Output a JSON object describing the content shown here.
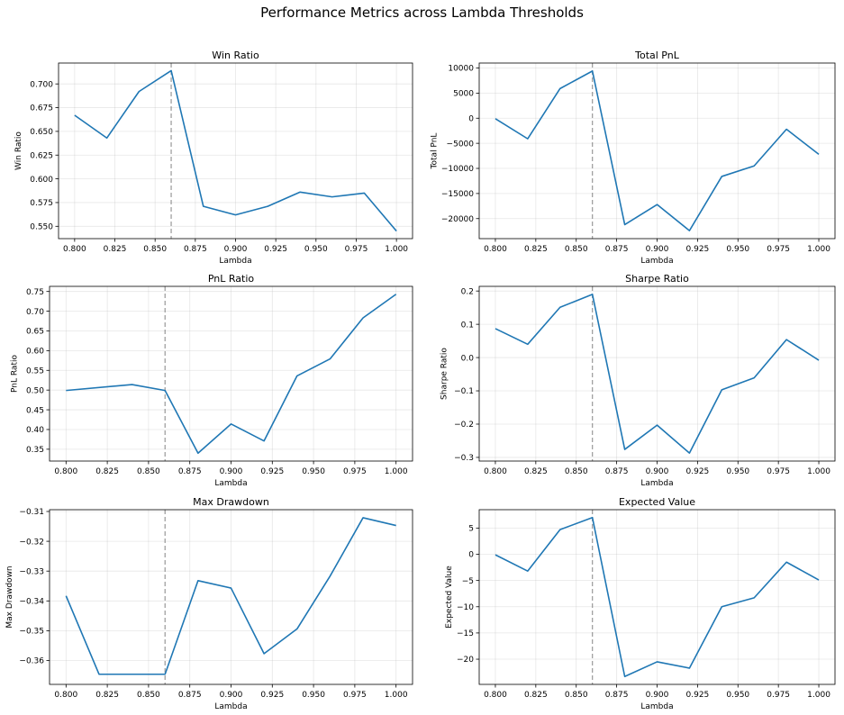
{
  "suptitle": "Performance Metrics across Lambda Thresholds",
  "colors": {
    "series": "#1f77b4",
    "threshold": "#808080"
  },
  "chart_data": [
    {
      "type": "line",
      "title": "Win Ratio",
      "xlabel": "Lambda",
      "ylabel": "Win Ratio",
      "x": [
        0.8,
        0.82,
        0.84,
        0.86,
        0.88,
        0.9,
        0.92,
        0.94,
        0.96,
        0.98,
        1.0
      ],
      "values": [
        0.667,
        0.643,
        0.692,
        0.714,
        0.571,
        0.562,
        0.571,
        0.586,
        0.581,
        0.585,
        0.545
      ],
      "xlim": [
        0.79,
        1.01
      ],
      "ylim": [
        0.537,
        0.722
      ],
      "xticks": [
        0.8,
        0.825,
        0.85,
        0.875,
        0.9,
        0.925,
        0.95,
        0.975,
        1.0
      ],
      "xtick_labels": [
        "0.800",
        "0.825",
        "0.850",
        "0.875",
        "0.900",
        "0.925",
        "0.950",
        "0.975",
        "1.000"
      ],
      "yticks": [
        0.55,
        0.575,
        0.6,
        0.625,
        0.65,
        0.675,
        0.7
      ],
      "ytick_labels": [
        "0.550",
        "0.575",
        "0.600",
        "0.625",
        "0.650",
        "0.675",
        "0.700"
      ],
      "threshold_x": 0.86,
      "grid": true
    },
    {
      "type": "line",
      "title": "Total PnL",
      "xlabel": "Lambda",
      "ylabel": "Total PnL",
      "x": [
        0.8,
        0.82,
        0.84,
        0.86,
        0.88,
        0.9,
        0.92,
        0.94,
        0.96,
        0.98,
        1.0
      ],
      "values": [
        -100,
        -4100,
        5900,
        9400,
        -21200,
        -17200,
        -22400,
        -11600,
        -9500,
        -2200,
        -7200
      ],
      "xlim": [
        0.79,
        1.01
      ],
      "ylim": [
        -23990,
        10990
      ],
      "xticks": [
        0.8,
        0.825,
        0.85,
        0.875,
        0.9,
        0.925,
        0.95,
        0.975,
        1.0
      ],
      "xtick_labels": [
        "0.800",
        "0.825",
        "0.850",
        "0.875",
        "0.900",
        "0.925",
        "0.950",
        "0.975",
        "1.000"
      ],
      "yticks": [
        -20000,
        -15000,
        -10000,
        -5000,
        0,
        5000,
        10000
      ],
      "ytick_labels": [
        "−20000",
        "−15000",
        "−10000",
        "−5000",
        "0",
        "5000",
        "10000"
      ],
      "threshold_x": 0.86,
      "grid": true
    },
    {
      "type": "line",
      "title": "PnL Ratio",
      "xlabel": "Lambda",
      "ylabel": "PnL Ratio",
      "x": [
        0.8,
        0.84,
        0.86,
        0.88,
        0.9,
        0.92,
        0.94,
        0.96,
        0.98,
        1.0
      ],
      "values": [
        0.499,
        0.514,
        0.499,
        0.34,
        0.414,
        0.371,
        0.536,
        0.579,
        0.683,
        0.743
      ],
      "xlim": [
        0.79,
        1.01
      ],
      "ylim": [
        0.32,
        0.763
      ],
      "xticks": [
        0.8,
        0.825,
        0.85,
        0.875,
        0.9,
        0.925,
        0.95,
        0.975,
        1.0
      ],
      "xtick_labels": [
        "0.800",
        "0.825",
        "0.850",
        "0.875",
        "0.900",
        "0.925",
        "0.950",
        "0.975",
        "1.000"
      ],
      "yticks": [
        0.35,
        0.4,
        0.45,
        0.5,
        0.55,
        0.6,
        0.65,
        0.7,
        0.75
      ],
      "ytick_labels": [
        "0.35",
        "0.40",
        "0.45",
        "0.50",
        "0.55",
        "0.60",
        "0.65",
        "0.70",
        "0.75"
      ],
      "threshold_x": 0.86,
      "grid": true
    },
    {
      "type": "line",
      "title": "Sharpe Ratio",
      "xlabel": "Lambda",
      "ylabel": "Sharpe Ratio",
      "x": [
        0.8,
        0.82,
        0.84,
        0.86,
        0.88,
        0.9,
        0.92,
        0.94,
        0.96,
        0.98,
        1.0
      ],
      "values": [
        0.087,
        0.04,
        0.151,
        0.19,
        -0.276,
        -0.203,
        -0.287,
        -0.097,
        -0.061,
        0.054,
        -0.008
      ],
      "xlim": [
        0.79,
        1.01
      ],
      "ylim": [
        -0.311,
        0.214
      ],
      "xticks": [
        0.8,
        0.825,
        0.85,
        0.875,
        0.9,
        0.925,
        0.95,
        0.975,
        1.0
      ],
      "xtick_labels": [
        "0.800",
        "0.825",
        "0.850",
        "0.875",
        "0.900",
        "0.925",
        "0.950",
        "0.975",
        "1.000"
      ],
      "yticks": [
        -0.3,
        -0.2,
        -0.1,
        0.0,
        0.1,
        0.2
      ],
      "ytick_labels": [
        "−0.3",
        "−0.2",
        "−0.1",
        "0.0",
        "0.1",
        "0.2"
      ],
      "threshold_x": 0.86,
      "grid": true
    },
    {
      "type": "line",
      "title": "Max Drawdown",
      "xlabel": "Lambda",
      "ylabel": "Max Drawdown",
      "x": [
        0.8,
        0.82,
        0.84,
        0.86,
        0.88,
        0.9,
        0.92,
        0.94,
        0.96,
        0.98,
        1.0
      ],
      "values": [
        -0.3383,
        -0.3646,
        -0.3646,
        -0.3646,
        -0.3332,
        -0.3357,
        -0.3577,
        -0.3494,
        -0.3317,
        -0.3121,
        -0.3147
      ],
      "xlim": [
        0.79,
        1.01
      ],
      "ylim": [
        -0.368,
        -0.3094
      ],
      "xticks": [
        0.8,
        0.825,
        0.85,
        0.875,
        0.9,
        0.925,
        0.95,
        0.975,
        1.0
      ],
      "xtick_labels": [
        "0.800",
        "0.825",
        "0.850",
        "0.875",
        "0.900",
        "0.925",
        "0.950",
        "0.975",
        "1.000"
      ],
      "yticks": [
        -0.36,
        -0.35,
        -0.34,
        -0.33,
        -0.32,
        -0.31
      ],
      "ytick_labels": [
        "−0.36",
        "−0.35",
        "−0.34",
        "−0.33",
        "−0.32",
        "−0.31"
      ],
      "threshold_x": 0.86,
      "grid": true
    },
    {
      "type": "line",
      "title": "Expected Value",
      "xlabel": "Lambda",
      "ylabel": "Expected Value",
      "x": [
        0.8,
        0.82,
        0.84,
        0.86,
        0.88,
        0.9,
        0.92,
        0.94,
        0.96,
        0.98,
        1.0
      ],
      "values": [
        -0.1,
        -3.2,
        4.7,
        7.0,
        -23.3,
        -20.5,
        -21.7,
        -10.0,
        -8.3,
        -1.5,
        -4.9
      ],
      "xlim": [
        0.79,
        1.01
      ],
      "ylim": [
        -24.8,
        8.5
      ],
      "xticks": [
        0.8,
        0.825,
        0.85,
        0.875,
        0.9,
        0.925,
        0.95,
        0.975,
        1.0
      ],
      "xtick_labels": [
        "0.800",
        "0.825",
        "0.850",
        "0.875",
        "0.900",
        "0.925",
        "0.950",
        "0.975",
        "1.000"
      ],
      "yticks": [
        -20,
        -15,
        -10,
        -5,
        0,
        5
      ],
      "ytick_labels": [
        "−20",
        "−15",
        "−10",
        "−5",
        "0",
        "5"
      ],
      "threshold_x": 0.86,
      "grid": true
    }
  ]
}
